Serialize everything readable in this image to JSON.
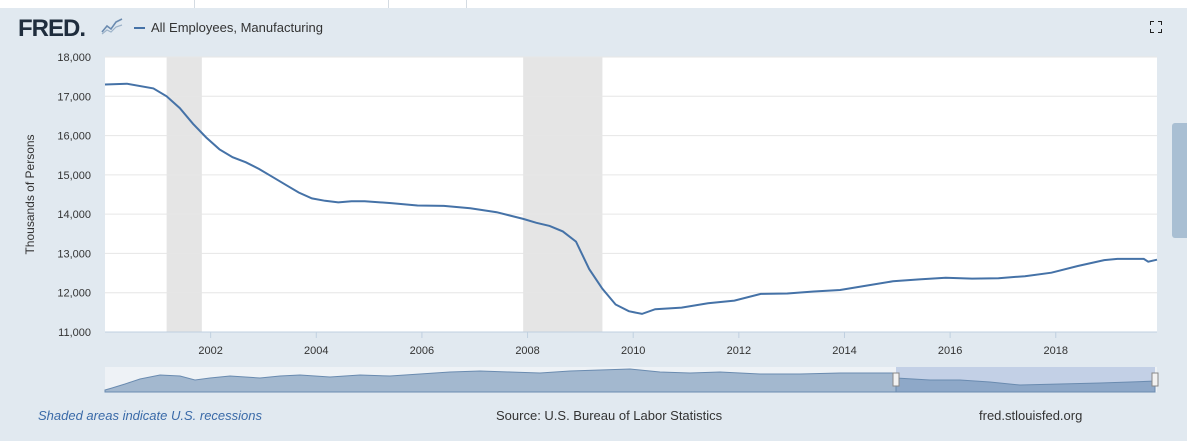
{
  "header": {
    "logo_text": "FRED",
    "logo_icon": "line-chart-icon",
    "legend_label": "All Employees, Manufacturing",
    "fullscreen_icon": "fullscreen-icon"
  },
  "colors": {
    "series": "#4572a7",
    "recession": "#e5e5e5",
    "background": "#e1e9f0",
    "plot": "#ffffff",
    "navigator_fill": "#a3b8cf"
  },
  "footer": {
    "note": "Shaded areas indicate U.S. recessions",
    "source": "Source: U.S. Bureau of Labor Statistics",
    "site": "fred.stlouisfed.org"
  },
  "chart_data": {
    "type": "line",
    "ylabel": "Thousands of Persons",
    "ylim": [
      11000,
      18000
    ],
    "xlim": [
      "2000-01",
      "2019-12"
    ],
    "y_ticks": [
      11000,
      12000,
      13000,
      14000,
      15000,
      16000,
      17000,
      18000
    ],
    "y_tick_labels": [
      "11,000",
      "12,000",
      "13,000",
      "14,000",
      "15,000",
      "16,000",
      "17,000",
      "18,000"
    ],
    "x_ticks": [
      "2002",
      "2004",
      "2006",
      "2008",
      "2010",
      "2012",
      "2014",
      "2016",
      "2018"
    ],
    "grid": true,
    "legend": "top-left",
    "recessions": [
      [
        "2001-03",
        "2001-11"
      ],
      [
        "2007-12",
        "2009-06"
      ]
    ],
    "series": [
      {
        "name": "All Employees, Manufacturing",
        "x": [
          "2000-01",
          "2000-06",
          "2000-12",
          "2001-03",
          "2001-06",
          "2001-09",
          "2001-12",
          "2002-03",
          "2002-06",
          "2002-09",
          "2002-12",
          "2003-03",
          "2003-06",
          "2003-09",
          "2003-12",
          "2004-03",
          "2004-06",
          "2004-09",
          "2004-12",
          "2005-06",
          "2005-12",
          "2006-06",
          "2006-12",
          "2007-06",
          "2007-12",
          "2008-03",
          "2008-06",
          "2008-09",
          "2008-12",
          "2009-03",
          "2009-06",
          "2009-09",
          "2009-12",
          "2010-03",
          "2010-06",
          "2010-12",
          "2011-06",
          "2011-12",
          "2012-06",
          "2012-12",
          "2013-06",
          "2013-12",
          "2014-06",
          "2014-12",
          "2015-06",
          "2015-12",
          "2016-06",
          "2016-12",
          "2017-06",
          "2017-12",
          "2018-06",
          "2018-12",
          "2019-03",
          "2019-06",
          "2019-09",
          "2019-10",
          "2019-12"
        ],
        "values": [
          17300,
          17320,
          17200,
          17000,
          16700,
          16300,
          15950,
          15650,
          15450,
          15320,
          15150,
          14950,
          14750,
          14550,
          14400,
          14340,
          14300,
          14330,
          14330,
          14280,
          14220,
          14210,
          14150,
          14050,
          13880,
          13780,
          13700,
          13560,
          13300,
          12600,
          12100,
          11700,
          11530,
          11460,
          11580,
          11620,
          11730,
          11800,
          11970,
          11980,
          12030,
          12070,
          12180,
          12290,
          12340,
          12380,
          12360,
          12370,
          12420,
          12510,
          12680,
          12830,
          12860,
          12860,
          12860,
          12790,
          12840
        ]
      }
    ]
  }
}
